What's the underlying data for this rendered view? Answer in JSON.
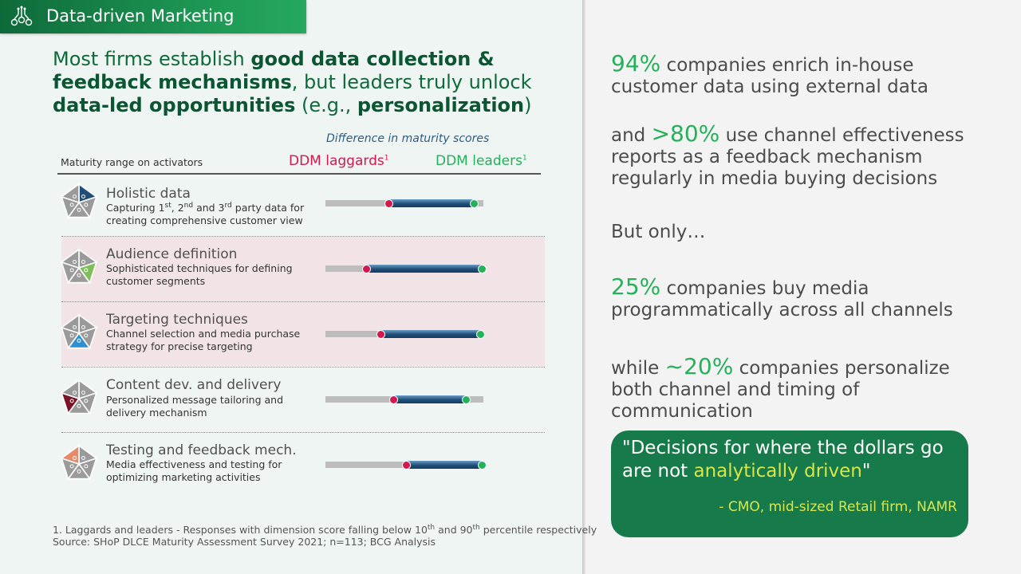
{
  "banner": {
    "title": "Data-driven Marketing"
  },
  "headline": {
    "p1": "Most firms establish ",
    "b1": "good data collection & feedback mechanisms",
    "p2": ", but leaders truly unlock ",
    "b2": "data-led opportunities",
    "p3": " (e.g., ",
    "b3": "personalization",
    "p4": ")"
  },
  "chart": {
    "caption": "Difference in maturity scores",
    "range_label": "Maturity range on activators",
    "laggards_label": "DDM laggards",
    "leaders_label": "DDM leaders",
    "footnote_mark": "1",
    "colors": {
      "laggards": "#d4174f",
      "leaders": "#25b05a",
      "fill": "#1f4e79",
      "track": "#bdbdbd"
    },
    "rows": [
      {
        "title": "Holistic data",
        "desc_a": "Capturing 1",
        "desc_sup1": "st",
        "desc_b": ", 2",
        "desc_sup2": "nd",
        "desc_c": " and 3",
        "desc_sup3": "rd",
        "desc_d": " party data for creating comprehensive customer view",
        "laggard": 0.4,
        "leader": 0.94,
        "highlight": false,
        "icon": "pentagon-puzzle-icon",
        "piece": 0,
        "piece_color": "#1f4e79"
      },
      {
        "title": "Audience definition",
        "desc": "Sophisticated techniques for defining customer segments",
        "laggard": 0.26,
        "leader": 0.99,
        "highlight": true,
        "icon": "pentagon-puzzle-icon",
        "piece": 1,
        "piece_color": "#7fbf5a"
      },
      {
        "title": "Targeting techniques",
        "desc": "Channel selection and media purchase strategy for precise targeting",
        "laggard": 0.35,
        "leader": 0.98,
        "highlight": true,
        "icon": "pentagon-puzzle-icon",
        "piece": 2,
        "piece_color": "#2f8fd0"
      },
      {
        "title": "Content dev. and delivery",
        "desc": "Personalized message tailoring and delivery mechanism",
        "laggard": 0.43,
        "leader": 0.89,
        "highlight": false,
        "icon": "pentagon-puzzle-icon",
        "piece": 3,
        "piece_color": "#7a1228"
      },
      {
        "title": "Testing and feedback mech.",
        "desc": "Media effectiveness and testing for optimizing marketing activities",
        "laggard": 0.51,
        "leader": 0.99,
        "highlight": false,
        "icon": "pentagon-puzzle-icon",
        "piece": 4,
        "piece_color": "#e8896a"
      }
    ]
  },
  "footnote": {
    "line1_a": "1. Laggards and leaders - Responses with dimension score falling below 10",
    "line1_sup1": "th",
    "line1_b": " and 90",
    "line1_sup2": "th",
    "line1_c": " percentile respectively",
    "line2": "Source: SHoP DLCE Maturity Assessment Survey 2021; n=113; BCG Analysis"
  },
  "stats": [
    {
      "pct": "94%",
      "text": " companies enrich in-house customer data using external data"
    },
    {
      "lead": "and ",
      "pct": ">80%",
      "text": " use channel effectiveness reports as a feedback mechanism regularly in media buying decisions"
    },
    {
      "text": "But only…"
    },
    {
      "pct": "25%",
      "text": " companies buy media programmatically across all channels"
    },
    {
      "lead": "while ",
      "pct": "~20%",
      "text": " companies personalize both channel and timing of communication"
    }
  ],
  "quote": {
    "text_a": "\"Decisions for where the dollars go are not ",
    "highlight": "analytically driven",
    "text_b": "\"",
    "source": "- CMO, mid-sized Retail firm, NAMR"
  }
}
